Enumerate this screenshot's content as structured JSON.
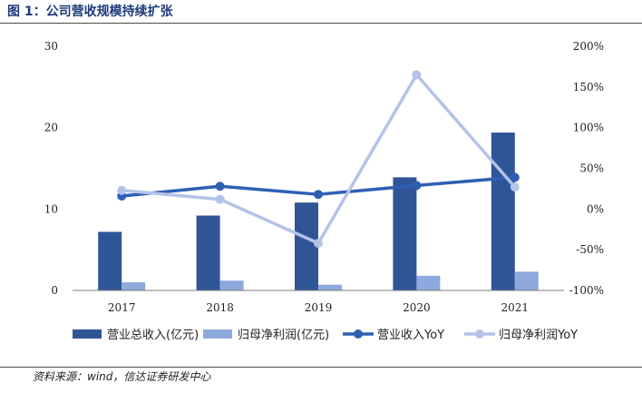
{
  "header": {
    "title": "图 1：公司营收规模持续扩张"
  },
  "footer": {
    "source": "资料来源：wind，信达证券研发中心"
  },
  "colors": {
    "revenue_bar": "#2f5597",
    "profit_bar": "#8ea9db",
    "revenue_yoy_line": "#2f5fb3",
    "profit_yoy_line": "#b4c3e6",
    "axis": "#7f7f7f"
  },
  "chart_data": {
    "type": "bar",
    "categories": [
      "2017",
      "2018",
      "2019",
      "2020",
      "2021"
    ],
    "y_left": {
      "ylim": [
        0,
        30
      ],
      "ticks": [
        "0",
        "10",
        "20",
        "30"
      ]
    },
    "y_right": {
      "ylim": [
        -100,
        200
      ],
      "ticks": [
        "-100%",
        "-50%",
        "0%",
        "50%",
        "100%",
        "150%",
        "200%"
      ]
    },
    "grid": false,
    "legend_position": "bottom",
    "series": [
      {
        "name": "营业总收入(亿元)",
        "kind": "bar",
        "axis": "left",
        "values": [
          7.2,
          9.2,
          10.8,
          13.9,
          19.4
        ]
      },
      {
        "name": "归母净利润(亿元)",
        "kind": "bar",
        "axis": "left",
        "values": [
          1.0,
          1.2,
          0.7,
          1.8,
          2.3
        ]
      },
      {
        "name": "营业收入YoY",
        "kind": "line",
        "axis": "right",
        "values": [
          16,
          28,
          18,
          29,
          39
        ]
      },
      {
        "name": "归母净利润YoY",
        "kind": "line",
        "axis": "right",
        "values": [
          23,
          12,
          -42,
          165,
          27
        ]
      }
    ]
  }
}
